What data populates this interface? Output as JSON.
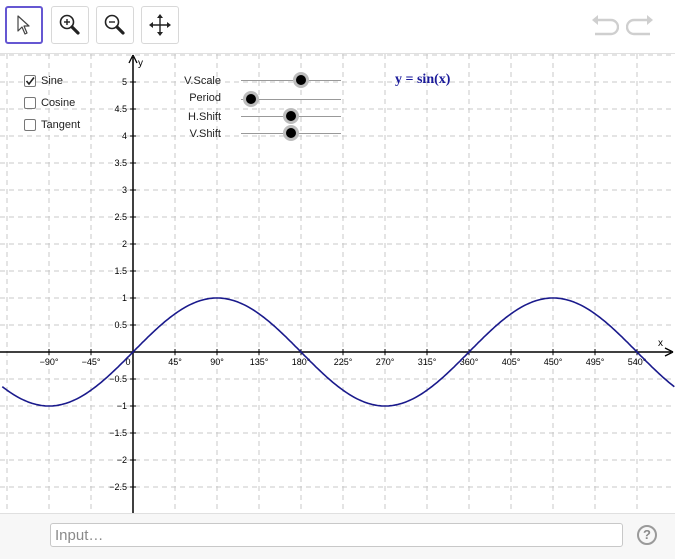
{
  "toolbar": {
    "tools": [
      {
        "name": "move",
        "icon": "arrow-cursor-icon",
        "active": true
      },
      {
        "name": "zoom-in",
        "icon": "zoom-in-icon",
        "active": false
      },
      {
        "name": "zoom-out",
        "icon": "zoom-out-icon",
        "active": false
      },
      {
        "name": "move-view",
        "icon": "move-arrows-icon",
        "active": false
      }
    ],
    "undo_icon": "undo-icon",
    "redo_icon": "redo-icon"
  },
  "checkboxes": [
    {
      "label": "Sine",
      "checked": true
    },
    {
      "label": "Cosine",
      "checked": false
    },
    {
      "label": "Tangent",
      "checked": false
    }
  ],
  "sliders": [
    {
      "label": "V.Scale",
      "value_fraction": 0.6
    },
    {
      "label": "Period",
      "value_fraction": 0.1
    },
    {
      "label": "H.Shift",
      "value_fraction": 0.5
    },
    {
      "label": "V.Shift",
      "value_fraction": 0.5
    }
  ],
  "formula": "y = sin(x)",
  "axes": {
    "x_label": "x",
    "y_label": "y",
    "x_ticks": [
      "−90°",
      "−45°",
      "0",
      "45°",
      "90°",
      "135°",
      "180°",
      "225°",
      "270°",
      "315°",
      "360°",
      "405°",
      "450°",
      "495°",
      "540°"
    ],
    "y_ticks_pos": [
      "0.5",
      "1",
      "1.5",
      "2",
      "2.5",
      "3",
      "3.5",
      "4",
      "4.5",
      "5"
    ],
    "y_ticks_neg": [
      "−0.5",
      "−1",
      "−1.5",
      "−2",
      "−2.5"
    ]
  },
  "chart_data": {
    "type": "line",
    "series": [
      {
        "function": "sin(x)",
        "x_range_deg": [
          -140,
          580
        ]
      }
    ],
    "xlabel": "x",
    "ylabel": "y",
    "grid": true,
    "accent_color": "#1a1a8c"
  },
  "input_bar": {
    "placeholder": "Input…",
    "help_label": "?"
  },
  "colors": {
    "active_tool_border": "#6557d2",
    "curve": "#1a1a8c",
    "formula": "#1a1a9a"
  }
}
